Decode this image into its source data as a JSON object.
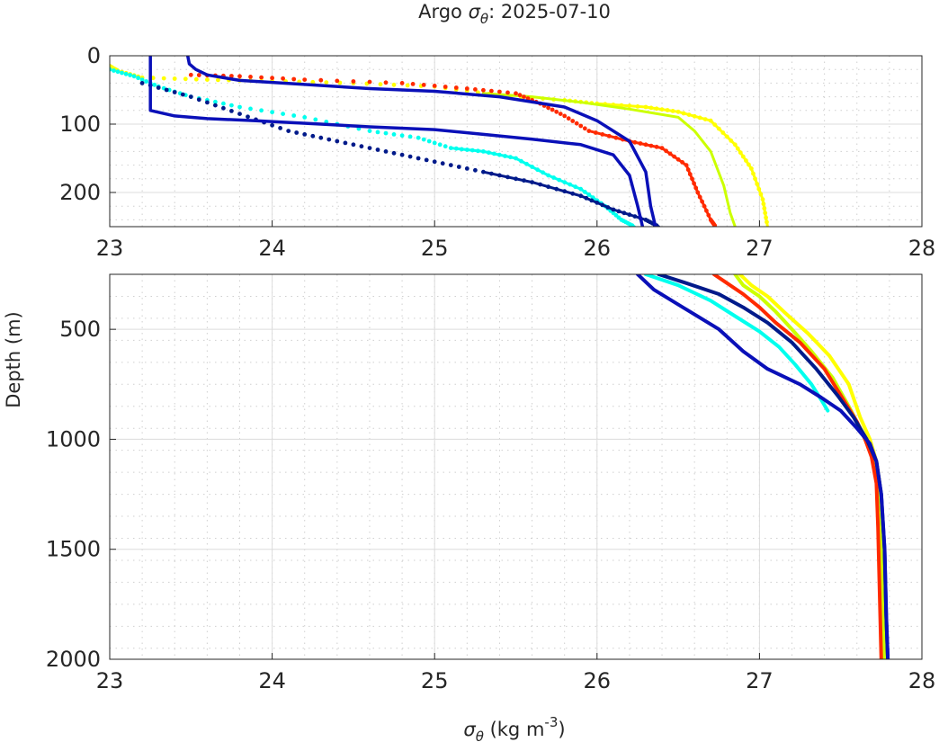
{
  "chart_data": {
    "type": "line",
    "title": "Argo",
    "title_symbol": "σ",
    "title_subscript": "θ",
    "title_date": ": 2025-07-10",
    "xlabel": "σ",
    "xlabel_subscript": "θ",
    "xlabel_units": " (kg m",
    "xlabel_units_sup": "-3",
    "xlabel_units_close": ")",
    "ylabel": "Depth (m)",
    "panels": [
      {
        "name": "upper",
        "xlim": [
          23,
          28
        ],
        "ylim": [
          0,
          250
        ],
        "y_reversed": true,
        "xticks": [
          "23",
          "24",
          "25",
          "26",
          "27",
          "28"
        ],
        "yticks": [
          {
            "value": 0,
            "label": "0"
          },
          {
            "value": 100,
            "label": "100"
          },
          {
            "value": 200,
            "label": "200"
          }
        ],
        "grid": true,
        "minor_grid": true
      },
      {
        "name": "lower",
        "xlim": [
          23,
          28
        ],
        "ylim": [
          250,
          2000
        ],
        "y_reversed": true,
        "xticks": [
          "23",
          "24",
          "25",
          "26",
          "27",
          "28"
        ],
        "yticks": [
          {
            "value": 500,
            "label": "500"
          },
          {
            "value": 1000,
            "label": "1000"
          },
          {
            "value": 1500,
            "label": "1500"
          },
          {
            "value": 2000,
            "label": "2000"
          }
        ],
        "grid": true,
        "minor_grid": true
      }
    ],
    "series": [
      {
        "name": "profile-yellow",
        "color": "#ffff00",
        "upper": [
          [
            23.0,
            15
          ],
          [
            23.05,
            22
          ],
          [
            23.2,
            32
          ],
          [
            23.6,
            35
          ],
          [
            24.0,
            37
          ],
          [
            24.5,
            40
          ],
          [
            25.0,
            45
          ],
          [
            25.4,
            58
          ],
          [
            25.8,
            65
          ],
          [
            26.0,
            70
          ],
          [
            26.3,
            75
          ],
          [
            26.5,
            82
          ],
          [
            26.7,
            95
          ],
          [
            26.85,
            130
          ],
          [
            26.95,
            165
          ],
          [
            27.02,
            210
          ],
          [
            27.05,
            250
          ]
        ],
        "lower": [
          [
            26.88,
            250
          ],
          [
            26.95,
            300
          ],
          [
            27.05,
            350
          ],
          [
            27.15,
            420
          ],
          [
            27.3,
            520
          ],
          [
            27.43,
            620
          ],
          [
            27.55,
            750
          ],
          [
            27.62,
            900
          ],
          [
            27.68,
            1000
          ],
          [
            27.72,
            1100
          ],
          [
            27.74,
            1200
          ],
          [
            27.75,
            1300
          ],
          [
            27.76,
            1500
          ],
          [
            27.77,
            1800
          ],
          [
            27.78,
            2000
          ]
        ]
      },
      {
        "name": "profile-yellowgreen",
        "color": "#ccff00",
        "upper": [
          [
            25.3,
            55
          ],
          [
            25.6,
            60
          ],
          [
            25.9,
            68
          ],
          [
            26.2,
            78
          ],
          [
            26.5,
            90
          ],
          [
            26.6,
            110
          ],
          [
            26.7,
            140
          ],
          [
            26.78,
            190
          ],
          [
            26.82,
            230
          ],
          [
            26.85,
            250
          ]
        ],
        "lower": [
          [
            26.85,
            250
          ],
          [
            26.9,
            300
          ],
          [
            27.0,
            350
          ],
          [
            27.1,
            420
          ],
          [
            27.2,
            500
          ],
          [
            27.32,
            600
          ],
          [
            27.45,
            720
          ],
          [
            27.55,
            850
          ],
          [
            27.62,
            950
          ],
          [
            27.68,
            1050
          ],
          [
            27.72,
            1150
          ],
          [
            27.74,
            1250
          ],
          [
            27.75,
            1400
          ],
          [
            27.76,
            1700
          ],
          [
            27.77,
            2000
          ]
        ]
      },
      {
        "name": "profile-red",
        "color": "#ff2a00",
        "upper": [
          [
            23.5,
            28
          ],
          [
            23.8,
            30
          ],
          [
            24.2,
            35
          ],
          [
            24.8,
            40
          ],
          [
            25.2,
            48
          ],
          [
            25.5,
            55
          ],
          [
            25.65,
            70
          ],
          [
            25.8,
            88
          ],
          [
            25.95,
            110
          ],
          [
            26.2,
            125
          ],
          [
            26.4,
            135
          ],
          [
            26.55,
            160
          ],
          [
            26.62,
            200
          ],
          [
            26.7,
            240
          ],
          [
            26.73,
            250
          ]
        ],
        "lower": [
          [
            26.72,
            250
          ],
          [
            26.8,
            290
          ],
          [
            26.9,
            340
          ],
          [
            27.0,
            400
          ],
          [
            27.1,
            470
          ],
          [
            27.25,
            560
          ],
          [
            27.4,
            680
          ],
          [
            27.5,
            800
          ],
          [
            27.6,
            920
          ],
          [
            27.65,
            1000
          ],
          [
            27.69,
            1080
          ],
          [
            27.72,
            1200
          ],
          [
            27.73,
            1400
          ],
          [
            27.74,
            1700
          ],
          [
            27.75,
            2000
          ]
        ]
      },
      {
        "name": "profile-cyan",
        "color": "#00ffee",
        "upper": [
          [
            23.0,
            20
          ],
          [
            23.15,
            30
          ],
          [
            23.3,
            45
          ],
          [
            23.5,
            60
          ],
          [
            23.8,
            75
          ],
          [
            24.2,
            90
          ],
          [
            24.6,
            110
          ],
          [
            24.9,
            120
          ],
          [
            25.1,
            135
          ],
          [
            25.3,
            140
          ],
          [
            25.5,
            150
          ],
          [
            25.7,
            175
          ],
          [
            25.9,
            195
          ],
          [
            26.05,
            220
          ],
          [
            26.15,
            240
          ],
          [
            26.23,
            250
          ]
        ],
        "lower": [
          [
            26.3,
            250
          ],
          [
            26.5,
            300
          ],
          [
            26.7,
            370
          ],
          [
            26.85,
            440
          ],
          [
            27.0,
            510
          ],
          [
            27.12,
            580
          ],
          [
            27.22,
            660
          ],
          [
            27.32,
            750
          ],
          [
            27.38,
            820
          ],
          [
            27.42,
            870
          ]
        ]
      },
      {
        "name": "profile-navy",
        "color": "#001a8a",
        "upper": [
          [
            23.2,
            40
          ],
          [
            23.5,
            60
          ],
          [
            23.8,
            85
          ],
          [
            24.1,
            110
          ],
          [
            24.4,
            125
          ],
          [
            24.7,
            140
          ],
          [
            25.0,
            155
          ],
          [
            25.3,
            170
          ],
          [
            25.6,
            185
          ],
          [
            25.9,
            205
          ],
          [
            26.1,
            225
          ],
          [
            26.3,
            240
          ],
          [
            26.38,
            250
          ]
        ],
        "lower": [
          [
            26.38,
            250
          ],
          [
            26.55,
            290
          ],
          [
            26.75,
            340
          ],
          [
            26.9,
            400
          ],
          [
            27.05,
            470
          ],
          [
            27.2,
            560
          ],
          [
            27.35,
            680
          ],
          [
            27.48,
            800
          ],
          [
            27.58,
            900
          ],
          [
            27.66,
            1000
          ],
          [
            27.72,
            1100
          ],
          [
            27.75,
            1250
          ],
          [
            27.77,
            1500
          ],
          [
            27.78,
            1800
          ],
          [
            27.79,
            2000
          ]
        ]
      },
      {
        "name": "profile-blue",
        "color": "#0a10b8",
        "upper": [
          [
            23.25,
            0
          ],
          [
            23.25,
            80
          ],
          [
            23.4,
            88
          ],
          [
            23.6,
            92
          ],
          [
            23.9,
            95
          ],
          [
            24.3,
            100
          ],
          [
            24.6,
            104
          ],
          [
            25.0,
            108
          ],
          [
            25.3,
            115
          ],
          [
            25.6,
            122
          ],
          [
            25.9,
            130
          ],
          [
            26.1,
            145
          ],
          [
            26.2,
            175
          ],
          [
            26.25,
            220
          ],
          [
            26.28,
            250
          ]
        ],
        "upper_extra": [
          [
            23.48,
            0
          ],
          [
            23.49,
            12
          ],
          [
            23.53,
            20
          ],
          [
            23.6,
            28
          ],
          [
            23.8,
            36
          ],
          [
            24.2,
            42
          ],
          [
            24.6,
            48
          ],
          [
            25.0,
            52
          ],
          [
            25.4,
            60
          ],
          [
            25.8,
            75
          ],
          [
            26.0,
            95
          ],
          [
            26.2,
            125
          ],
          [
            26.3,
            170
          ],
          [
            26.33,
            220
          ],
          [
            26.36,
            250
          ]
        ],
        "lower": [
          [
            26.25,
            250
          ],
          [
            26.35,
            320
          ],
          [
            26.55,
            410
          ],
          [
            26.75,
            500
          ],
          [
            26.9,
            600
          ],
          [
            27.05,
            680
          ],
          [
            27.25,
            750
          ],
          [
            27.38,
            810
          ],
          [
            27.5,
            870
          ],
          [
            27.6,
            950
          ],
          [
            27.68,
            1020
          ],
          [
            27.72,
            1100
          ],
          [
            27.75,
            1250
          ],
          [
            27.77,
            1500
          ],
          [
            27.78,
            1800
          ],
          [
            27.79,
            2000
          ]
        ]
      }
    ]
  }
}
